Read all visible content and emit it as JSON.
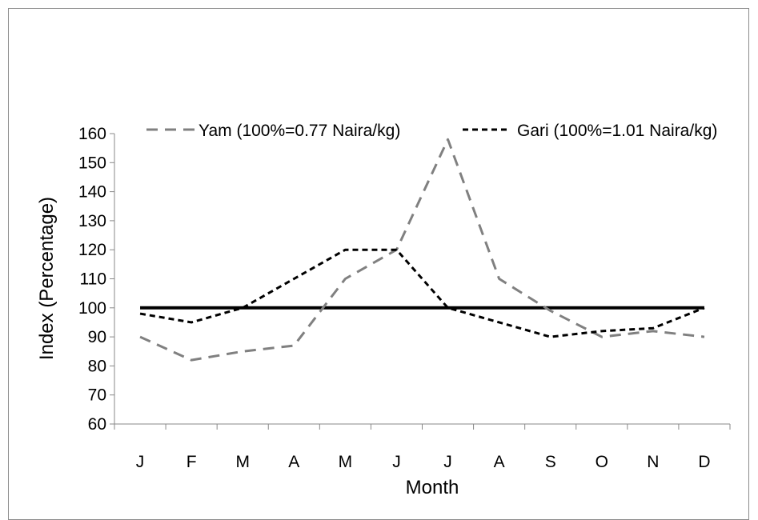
{
  "chart_data": {
    "type": "line",
    "categories": [
      "J",
      "F",
      "M",
      "A",
      "M",
      "J",
      "J",
      "A",
      "S",
      "O",
      "N",
      "D"
    ],
    "series": [
      {
        "name": "Yam (100%=0.77 Naira/kg)",
        "values": [
          90,
          82,
          85,
          87,
          110,
          120,
          158,
          110,
          99,
          90,
          92,
          90
        ],
        "color": "#808080",
        "style": "long-dash"
      },
      {
        "name": "Gari (100%=1.01 Naira/kg)",
        "values": [
          98,
          95,
          100,
          110,
          120,
          120,
          100,
          95,
          90,
          92,
          93,
          100
        ],
        "color": "#000000",
        "style": "short-dash"
      },
      {
        "name": "",
        "values": [
          100,
          100,
          100,
          100,
          100,
          100,
          100,
          100,
          100,
          100,
          100,
          100
        ],
        "color": "#000000",
        "style": "solid"
      }
    ],
    "xlabel": "Month",
    "ylabel": "Index (Percentage)",
    "ylim": [
      60,
      160
    ],
    "yticks": [
      60,
      70,
      80,
      90,
      100,
      110,
      120,
      130,
      140,
      150,
      160
    ],
    "grid": false,
    "legend_position": "top"
  }
}
